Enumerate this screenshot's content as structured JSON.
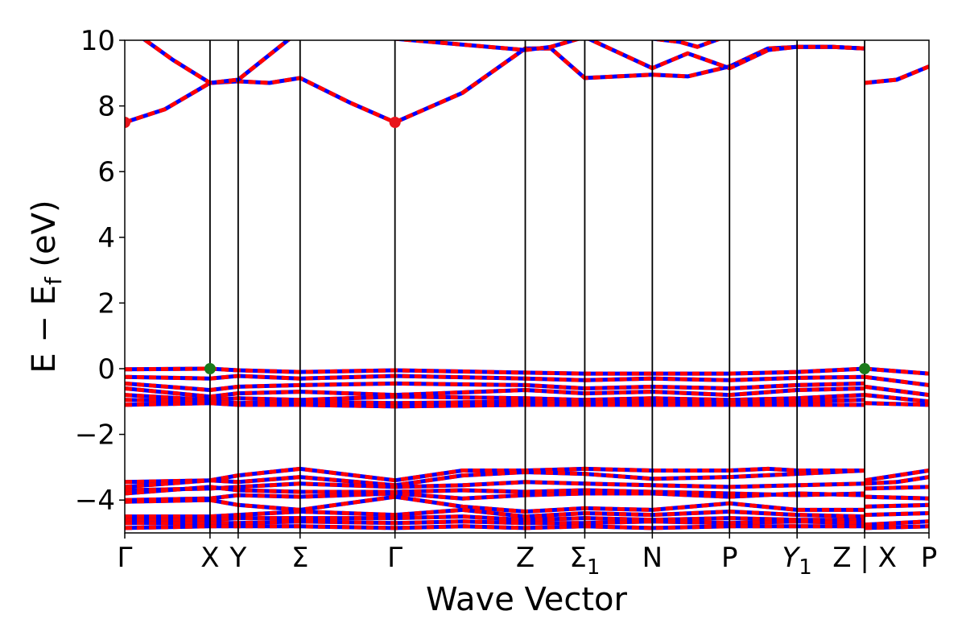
{
  "chart_data": {
    "type": "line",
    "xlabel": "Wave Vector",
    "ylabel": "E − E_f (eV)",
    "ylabel_parts": {
      "main": "E − E",
      "sub": "f",
      "unit": " (eV)"
    },
    "ylim": [
      -5,
      10
    ],
    "yticks": [
      {
        "value": 10,
        "label": "10"
      },
      {
        "value": 8,
        "label": "8"
      },
      {
        "value": 6,
        "label": "6"
      },
      {
        "value": 4,
        "label": "4"
      },
      {
        "value": 2,
        "label": "2"
      },
      {
        "value": 0,
        "label": "0"
      },
      {
        "value": -2,
        "label": "−2"
      },
      {
        "value": -4,
        "label": "−4"
      }
    ],
    "xlim": [
      0,
      1
    ],
    "kpoints": [
      {
        "x": 0.0,
        "label": "Γ"
      },
      {
        "x": 0.106,
        "label": "X"
      },
      {
        "x": 0.141,
        "label": "Y"
      },
      {
        "x": 0.218,
        "label": "Σ"
      },
      {
        "x": 0.336,
        "label": "Γ"
      },
      {
        "x": 0.498,
        "label": "Z"
      },
      {
        "x": 0.572,
        "label": "Σ",
        "sub": "1"
      },
      {
        "x": 0.656,
        "label": "N"
      },
      {
        "x": 0.752,
        "label": "P"
      },
      {
        "x": 0.836,
        "label": "Y",
        "sub": "1",
        "italic": true
      },
      {
        "x": 0.92,
        "label": "Z | X"
      },
      {
        "x": 1.0,
        "label": "P"
      }
    ],
    "segment_break_x": 0.92,
    "conduction_bands": [
      {
        "x": [
          0.0,
          0.05,
          0.106,
          0.141,
          0.18,
          0.218,
          0.28,
          0.336,
          0.42,
          0.498,
          0.53,
          0.572,
          0.656,
          0.7,
          0.752,
          0.8,
          0.836,
          0.88,
          0.92
        ],
        "y": [
          7.5,
          7.9,
          8.7,
          8.75,
          8.7,
          8.85,
          8.1,
          7.5,
          8.4,
          9.75,
          9.75,
          8.85,
          8.95,
          8.9,
          9.2,
          9.75,
          9.8,
          9.8,
          9.75
        ]
      },
      {
        "x": [
          0.0,
          0.02,
          0.06,
          0.106,
          0.141,
          0.218,
          0.498,
          0.53,
          0.572,
          0.656,
          0.7,
          0.752,
          0.8,
          0.836,
          0.88,
          0.92
        ],
        "y": [
          10.4,
          10.1,
          9.4,
          8.7,
          8.8,
          10.3,
          9.7,
          9.8,
          10.1,
          9.15,
          9.6,
          9.15,
          9.7,
          9.8,
          9.8,
          9.75
        ]
      },
      {
        "x": [
          0.572,
          0.62,
          0.656,
          0.69,
          0.712,
          0.74,
          0.76,
          0.8
        ],
        "y": [
          10.05,
          10.1,
          10.05,
          9.95,
          9.8,
          10.05,
          10.2,
          10.3
        ]
      },
      {
        "x": [
          0.92,
          0.96,
          1.0
        ],
        "y": [
          8.7,
          8.8,
          9.2
        ]
      }
    ],
    "valence_bands": [
      {
        "x": [
          0.0,
          0.106,
          0.141,
          0.218,
          0.336,
          0.498,
          0.572,
          0.656,
          0.752,
          0.836,
          0.92
        ],
        "y": [
          -0.02,
          0.0,
          -0.05,
          -0.1,
          -0.05,
          -0.12,
          -0.15,
          -0.15,
          -0.15,
          -0.1,
          0.0
        ]
      },
      {
        "x": [
          0.0,
          0.106,
          0.141,
          0.218,
          0.336,
          0.498,
          0.572,
          0.656,
          0.752,
          0.836,
          0.92
        ],
        "y": [
          -0.25,
          -0.3,
          -0.22,
          -0.3,
          -0.22,
          -0.3,
          -0.35,
          -0.3,
          -0.35,
          -0.28,
          -0.25
        ]
      },
      {
        "x": [
          0.0,
          0.106,
          0.141,
          0.218,
          0.336,
          0.498,
          0.572,
          0.656,
          0.752,
          0.836,
          0.92
        ],
        "y": [
          -0.45,
          -0.65,
          -0.55,
          -0.5,
          -0.45,
          -0.5,
          -0.6,
          -0.55,
          -0.6,
          -0.5,
          -0.45
        ]
      },
      {
        "x": [
          0.0,
          0.106,
          0.141,
          0.218,
          0.336,
          0.498,
          0.572,
          0.656,
          0.752,
          0.836,
          0.92
        ],
        "y": [
          -0.6,
          -0.85,
          -0.75,
          -0.7,
          -0.8,
          -0.65,
          -0.75,
          -0.7,
          -0.8,
          -0.65,
          -0.6
        ]
      },
      {
        "x": [
          0.0,
          0.106,
          0.141,
          0.218,
          0.336,
          0.498,
          0.572,
          0.656,
          0.752,
          0.836,
          0.92
        ],
        "y": [
          -0.8,
          -0.95,
          -0.9,
          -0.95,
          -0.85,
          -0.9,
          -0.95,
          -0.9,
          -0.95,
          -0.9,
          -0.8
        ]
      },
      {
        "x": [
          0.0,
          0.106,
          0.141,
          0.218,
          0.336,
          0.498,
          0.572,
          0.656,
          0.752,
          0.836,
          0.92
        ],
        "y": [
          -0.95,
          -1.0,
          -1.05,
          -1.0,
          -1.05,
          -1.0,
          -1.05,
          -1.0,
          -1.05,
          -1.0,
          -0.95
        ]
      },
      {
        "x": [
          0.0,
          0.106,
          0.141,
          0.218,
          0.336,
          0.498,
          0.572,
          0.656,
          0.752,
          0.836,
          0.92
        ],
        "y": [
          -1.1,
          -1.05,
          -1.1,
          -1.1,
          -1.15,
          -1.1,
          -1.1,
          -1.1,
          -1.1,
          -1.1,
          -1.1
        ]
      },
      {
        "x": [
          0.92,
          1.0
        ],
        "y": [
          -0.0,
          -0.15
        ]
      },
      {
        "x": [
          0.92,
          1.0
        ],
        "y": [
          -0.25,
          -0.5
        ]
      },
      {
        "x": [
          0.92,
          1.0
        ],
        "y": [
          -0.55,
          -0.8
        ]
      },
      {
        "x": [
          0.92,
          1.0
        ],
        "y": [
          -0.8,
          -1.0
        ]
      },
      {
        "x": [
          0.92,
          1.0
        ],
        "y": [
          -1.05,
          -1.1
        ]
      },
      {
        "x": [
          0.0,
          0.106,
          0.141,
          0.218,
          0.336,
          0.42,
          0.498,
          0.572,
          0.656,
          0.752,
          0.8,
          0.836,
          0.92
        ],
        "y": [
          -3.45,
          -3.4,
          -3.25,
          -3.05,
          -3.4,
          -3.1,
          -3.1,
          -3.05,
          -3.1,
          -3.1,
          -3.05,
          -3.1,
          -3.1
        ]
      },
      {
        "x": [
          0.0,
          0.106,
          0.141,
          0.218,
          0.336,
          0.42,
          0.498,
          0.572,
          0.656,
          0.752,
          0.836,
          0.92
        ],
        "y": [
          -3.6,
          -3.4,
          -3.45,
          -3.3,
          -3.55,
          -3.25,
          -3.15,
          -3.2,
          -3.35,
          -3.3,
          -3.2,
          -3.1
        ]
      },
      {
        "x": [
          0.0,
          0.106,
          0.141,
          0.218,
          0.336,
          0.42,
          0.498,
          0.572,
          0.656,
          0.752,
          0.836,
          0.92
        ],
        "y": [
          -3.7,
          -3.65,
          -3.6,
          -3.5,
          -3.6,
          -3.55,
          -3.45,
          -3.5,
          -3.55,
          -3.6,
          -3.55,
          -3.5
        ]
      },
      {
        "x": [
          0.0,
          0.106,
          0.141,
          0.218,
          0.336,
          0.42,
          0.498,
          0.572,
          0.656,
          0.752,
          0.836,
          0.92
        ],
        "y": [
          -3.8,
          -3.6,
          -3.7,
          -3.75,
          -3.75,
          -3.7,
          -3.75,
          -3.7,
          -3.75,
          -3.8,
          -3.85,
          -3.8
        ]
      },
      {
        "x": [
          0.0,
          0.106,
          0.141,
          0.218,
          0.336,
          0.42,
          0.498,
          0.572,
          0.656,
          0.752,
          0.836,
          0.92
        ],
        "y": [
          -4.0,
          -3.95,
          -3.85,
          -3.9,
          -3.8,
          -3.95,
          -3.85,
          -3.8,
          -3.8,
          -3.9,
          -3.8,
          -3.85
        ]
      },
      {
        "x": [
          0.0,
          0.106,
          0.141,
          0.218,
          0.336,
          0.42,
          0.498,
          0.572,
          0.656,
          0.752,
          0.836,
          0.92
        ],
        "y": [
          -4.05,
          -4.0,
          -4.15,
          -4.3,
          -3.9,
          -4.2,
          -4.35,
          -4.25,
          -4.3,
          -4.1,
          -4.3,
          -4.3
        ]
      },
      {
        "x": [
          0.0,
          0.106,
          0.141,
          0.218,
          0.336,
          0.42,
          0.498,
          0.572,
          0.656,
          0.752,
          0.836,
          0.92
        ],
        "y": [
          -4.5,
          -4.5,
          -4.45,
          -4.35,
          -4.45,
          -4.3,
          -4.5,
          -4.4,
          -4.45,
          -4.35,
          -4.45,
          -4.5
        ]
      },
      {
        "x": [
          0.0,
          0.106,
          0.141,
          0.218,
          0.336,
          0.42,
          0.498,
          0.572,
          0.656,
          0.752,
          0.836,
          0.92
        ],
        "y": [
          -4.6,
          -4.6,
          -4.55,
          -4.55,
          -4.55,
          -4.5,
          -4.6,
          -4.55,
          -4.6,
          -4.55,
          -4.6,
          -4.6
        ]
      },
      {
        "x": [
          0.0,
          0.106,
          0.141,
          0.218,
          0.336,
          0.42,
          0.498,
          0.572,
          0.656,
          0.752,
          0.836,
          0.92
        ],
        "y": [
          -4.7,
          -4.7,
          -4.7,
          -4.65,
          -4.7,
          -4.65,
          -4.7,
          -4.7,
          -4.65,
          -4.7,
          -4.65,
          -4.7
        ]
      },
      {
        "x": [
          0.0,
          0.106,
          0.141,
          0.218,
          0.336,
          0.42,
          0.498,
          0.572,
          0.656,
          0.752,
          0.836,
          0.92
        ],
        "y": [
          -4.85,
          -4.8,
          -4.8,
          -4.8,
          -4.85,
          -4.8,
          -4.85,
          -4.8,
          -4.85,
          -4.8,
          -4.8,
          -4.8
        ]
      },
      {
        "x": [
          0.92,
          0.96,
          1.0
        ],
        "y": [
          -3.4,
          -3.25,
          -3.1
        ]
      },
      {
        "x": [
          0.92,
          0.96,
          1.0
        ],
        "y": [
          -3.5,
          -3.45,
          -3.3
        ]
      },
      {
        "x": [
          0.92,
          1.0
        ],
        "y": [
          -3.65,
          -3.6
        ]
      },
      {
        "x": [
          0.92,
          1.0
        ],
        "y": [
          -3.9,
          -3.95
        ]
      },
      {
        "x": [
          0.92,
          1.0
        ],
        "y": [
          -4.2,
          -4.15
        ]
      },
      {
        "x": [
          0.92,
          1.0
        ],
        "y": [
          -4.45,
          -4.4
        ]
      },
      {
        "x": [
          0.92,
          1.0
        ],
        "y": [
          -4.75,
          -4.65
        ]
      },
      {
        "x": [
          0.92,
          1.0
        ],
        "y": [
          -4.85,
          -4.8
        ]
      }
    ],
    "markers": [
      {
        "x": 0.0,
        "y": 7.5,
        "color": "#e8141c",
        "kind": "cbm"
      },
      {
        "x": 0.336,
        "y": 7.5,
        "color": "#e8141c",
        "kind": "cbm"
      },
      {
        "x": 0.106,
        "y": 0.0,
        "color": "#1a7a1a",
        "kind": "vbm"
      },
      {
        "x": 0.92,
        "y": 0.0,
        "color": "#1a7a1a",
        "kind": "vbm"
      }
    ],
    "colors": {
      "spin_up": "#ff0000",
      "spin_down": "#0000ff",
      "axes": "#000000"
    },
    "grid": false
  }
}
